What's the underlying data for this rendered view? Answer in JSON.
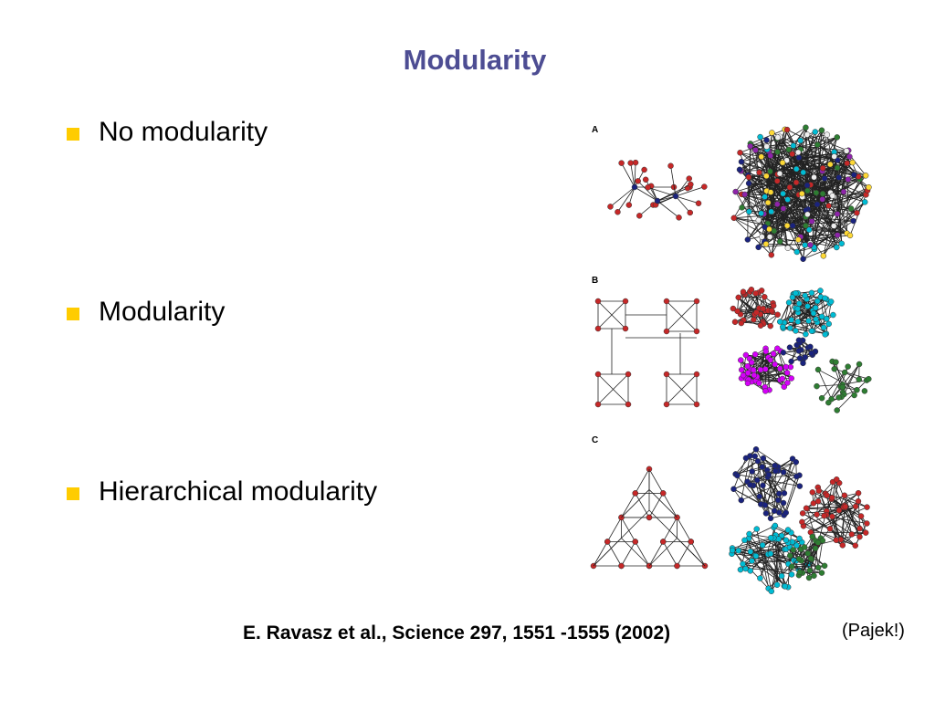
{
  "title": "Modularity",
  "bullets": [
    "No modularity",
    "Modularity",
    "Hierarchical modularity"
  ],
  "figure": {
    "panels": [
      "A",
      "B",
      "C"
    ]
  },
  "citation": "E. Ravasz et al., Science 297, 1551 -1555 (2002)",
  "note": "(Pajek!)"
}
